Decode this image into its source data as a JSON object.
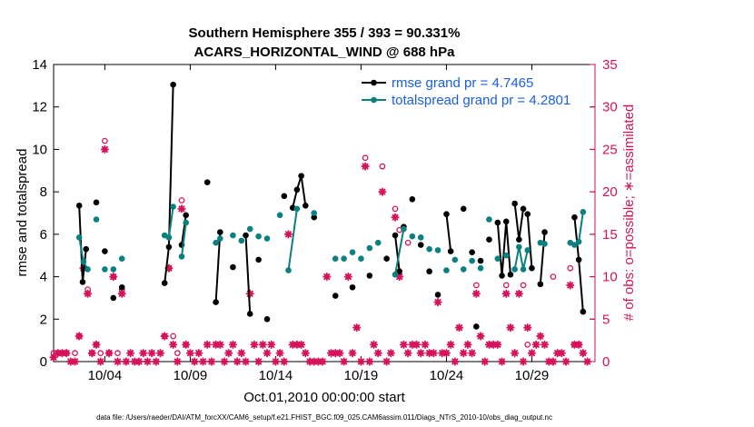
{
  "chart_data": {
    "type": "scatter",
    "title": "Southern Hemisphere 355 / 393 = 90.331%",
    "subtitle": "ACARS_HORIZONTAL_WIND @ 688 hPa",
    "xlabel": "Oct.01,2010 00:00:00 start",
    "ylabel": "rmse and totalspread",
    "ylabel_right": "# of obs: o=possible; ∗=assimilated",
    "footnote": "data file: /Users/raeder/DAI/ATM_forcXX/CAM6_setup/f.e21.FHIST_BGC.f09_025.CAM6assim.011/Diags_NTrS_2010-10/obs_diag_output.nc",
    "xlim": [
      1.0,
      32.7
    ],
    "ylim": [
      0,
      14
    ],
    "ylim_right": [
      0,
      35
    ],
    "x_tick_values": [
      4,
      9,
      14,
      19,
      24,
      29
    ],
    "x_tick_labels": [
      "10/04",
      "10/09",
      "10/14",
      "10/19",
      "10/24",
      "10/29"
    ],
    "y_ticks": [
      0,
      2,
      4,
      6,
      8,
      10,
      12,
      14
    ],
    "y_ticks_right": [
      0,
      5,
      10,
      15,
      20,
      25,
      30,
      35
    ],
    "grid": false,
    "legend_position": "top-right",
    "colors": {
      "rmse": "#000000",
      "spread": "#0a8080",
      "obs": "#d6135a",
      "legend_text": "#1a5fe0"
    },
    "series": [
      {
        "name": "rmse grand pr = 4.7465",
        "color": "#000000",
        "segments": [
          [
            [
              2.5,
              7.35
            ],
            [
              2.7,
              3.75
            ],
            [
              2.9,
              5.3
            ]
          ],
          [
            [
              3.5,
              7.5
            ]
          ],
          [
            [
              4.0,
              5.2
            ]
          ],
          [
            [
              4.5,
              3.0
            ]
          ],
          [
            [
              5.0,
              3.5
            ]
          ],
          [
            [
              7.5,
              3.7
            ],
            [
              7.75,
              5.4
            ],
            [
              8.0,
              13.05
            ]
          ],
          [
            [
              8.5,
              5.5
            ],
            [
              8.75,
              6.9
            ]
          ],
          [
            [
              10.0,
              8.45
            ]
          ],
          [
            [
              10.5,
              2.8
            ],
            [
              10.75,
              6.1
            ]
          ],
          [
            [
              11.5,
              4.45
            ]
          ],
          [
            [
              12.25,
              5.95
            ],
            [
              12.5,
              2.25
            ]
          ],
          [
            [
              13.0,
              4.8
            ]
          ],
          [
            [
              13.5,
              2.0
            ]
          ],
          [
            [
              14.5,
              7.8
            ]
          ],
          [
            [
              15.0,
              7.25
            ],
            [
              15.25,
              8.1
            ],
            [
              15.5,
              8.75
            ],
            [
              15.75,
              7.35
            ]
          ],
          [
            [
              16.25,
              6.8
            ]
          ],
          [
            [
              17.5,
              3.1
            ]
          ],
          [
            [
              18.5,
              3.5
            ]
          ],
          [
            [
              19.5,
              4.05
            ]
          ],
          [
            [
              20.5,
              4.85
            ]
          ],
          [
            [
              21.0,
              5.95
            ],
            [
              21.25,
              4.25
            ]
          ],
          [
            [
              21.5,
              6.35
            ]
          ],
          [
            [
              22.0,
              7.65
            ]
          ],
          [
            [
              22.5,
              5.5
            ]
          ],
          [
            [
              23.0,
              4.25
            ]
          ],
          [
            [
              23.5,
              3.15
            ]
          ],
          [
            [
              24.0,
              6.95
            ],
            [
              24.25,
              5.2
            ]
          ],
          [
            [
              25.0,
              7.2
            ]
          ],
          [
            [
              25.5,
              5.15
            ]
          ],
          [
            [
              25.75,
              1.65
            ]
          ],
          [
            [
              26.0,
              4.75
            ]
          ],
          [
            [
              26.5,
              5.75
            ]
          ],
          [
            [
              27.0,
              6.55
            ],
            [
              27.25,
              4.05
            ],
            [
              27.5,
              6.6
            ],
            [
              27.75,
              4.1
            ]
          ],
          [
            [
              28.0,
              7.45
            ],
            [
              28.25,
              5.75
            ],
            [
              28.5,
              7.2
            ]
          ],
          [
            [
              28.75,
              6.95
            ],
            [
              29.0,
              4.4
            ]
          ],
          [
            [
              29.5,
              3.65
            ],
            [
              29.75,
              6.1
            ]
          ],
          [
            [
              31.5,
              6.8
            ],
            [
              31.75,
              4.8
            ],
            [
              32.0,
              2.35
            ]
          ]
        ]
      },
      {
        "name": "totalspread grand pr = 4.2801",
        "color": "#0a8080",
        "segments": [
          [
            [
              2.5,
              5.85
            ],
            [
              2.75,
              4.7
            ],
            [
              3.0,
              4.35
            ]
          ],
          [
            [
              3.5,
              6.7
            ]
          ],
          [
            [
              4.0,
              4.35
            ]
          ],
          [
            [
              4.5,
              4.35
            ]
          ],
          [
            [
              5.0,
              4.85
            ]
          ],
          [
            [
              7.5,
              5.95
            ],
            [
              7.75,
              5.85
            ],
            [
              8.0,
              7.3
            ]
          ],
          [
            [
              8.5,
              4.95
            ],
            [
              8.75,
              6.55
            ]
          ],
          [
            [
              10.5,
              5.6
            ],
            [
              10.75,
              5.8
            ]
          ],
          [
            [
              11.5,
              5.95
            ]
          ],
          [
            [
              12.0,
              5.7
            ]
          ],
          [
            [
              12.5,
              6.25
            ]
          ],
          [
            [
              13.0,
              5.9
            ]
          ],
          [
            [
              13.5,
              5.8
            ]
          ],
          [
            [
              14.25,
              6.9
            ]
          ],
          [
            [
              14.75,
              4.3
            ],
            [
              15.25,
              7.2
            ]
          ],
          [
            [
              16.25,
              7.0
            ]
          ],
          [
            [
              17.5,
              4.85
            ]
          ],
          [
            [
              18.0,
              4.85
            ]
          ],
          [
            [
              18.5,
              5.15
            ]
          ],
          [
            [
              19.0,
              4.85
            ]
          ],
          [
            [
              19.5,
              5.35
            ]
          ],
          [
            [
              20.0,
              5.6
            ]
          ],
          [
            [
              21.0,
              4.1
            ],
            [
              21.5,
              6.25
            ]
          ],
          [
            [
              22.0,
              5.9
            ]
          ],
          [
            [
              22.5,
              5.85
            ]
          ],
          [
            [
              23.0,
              5.3
            ]
          ],
          [
            [
              23.5,
              5.25
            ]
          ],
          [
            [
              24.0,
              4.3
            ]
          ],
          [
            [
              24.5,
              4.8
            ]
          ],
          [
            [
              25.0,
              4.35
            ]
          ],
          [
            [
              25.5,
              4.75
            ]
          ],
          [
            [
              26.0,
              4.4
            ]
          ],
          [
            [
              26.5,
              6.7
            ]
          ],
          [
            [
              27.0,
              4.85
            ]
          ],
          [
            [
              27.5,
              5.0
            ]
          ],
          [
            [
              28.0,
              4.35
            ],
            [
              28.25,
              5.4
            ],
            [
              28.5,
              4.35
            ],
            [
              28.75,
              5.25
            ]
          ],
          [
            [
              29.5,
              5.6
            ],
            [
              29.75,
              5.55
            ]
          ],
          [
            [
              31.25,
              5.6
            ]
          ],
          [
            [
              31.5,
              5.5
            ]
          ],
          [
            [
              31.75,
              5.65
            ],
            [
              32.0,
              7.05
            ]
          ]
        ]
      }
    ],
    "obs_possible": [
      [
        1,
        1
      ],
      [
        1.25,
        1
      ],
      [
        1.5,
        1
      ],
      [
        1.75,
        1
      ],
      [
        2.25,
        1
      ],
      [
        2.5,
        3
      ],
      [
        2.75,
        11
      ],
      [
        3.0,
        8.5
      ],
      [
        3.25,
        1
      ],
      [
        3.5,
        2
      ],
      [
        3.75,
        1
      ],
      [
        4.0,
        26
      ],
      [
        4.25,
        1
      ],
      [
        4.5,
        10
      ],
      [
        4.75,
        1
      ],
      [
        5.0,
        8.5
      ],
      [
        7.5,
        3
      ],
      [
        7.75,
        11
      ],
      [
        8.0,
        3
      ],
      [
        8.25,
        1
      ],
      [
        8.5,
        19
      ],
      [
        8.75,
        2
      ],
      [
        19.25,
        24
      ],
      [
        20.25,
        23
      ],
      [
        21.0,
        18
      ],
      [
        21.25,
        15.5
      ],
      [
        21.75,
        14
      ],
      [
        25.75,
        9
      ],
      [
        27.5,
        9
      ],
      [
        28.5,
        9
      ],
      [
        28.75,
        2
      ],
      [
        30.25,
        10
      ],
      [
        31.25,
        11
      ],
      [
        31.5,
        2
      ],
      [
        31.75,
        2
      ]
    ],
    "obs_assimilated": [
      [
        1,
        0.5
      ],
      [
        1.25,
        1
      ],
      [
        1.5,
        1
      ],
      [
        1.75,
        1
      ],
      [
        2.0,
        0
      ],
      [
        2.25,
        0
      ],
      [
        2.5,
        3
      ],
      [
        2.75,
        11
      ],
      [
        3.0,
        8
      ],
      [
        3.25,
        1
      ],
      [
        3.5,
        2
      ],
      [
        3.75,
        0
      ],
      [
        4.0,
        25
      ],
      [
        4.25,
        1
      ],
      [
        4.5,
        10
      ],
      [
        4.75,
        0
      ],
      [
        5.0,
        8
      ],
      [
        5.25,
        0
      ],
      [
        5.5,
        1
      ],
      [
        5.75,
        0
      ],
      [
        6.0,
        0
      ],
      [
        6.25,
        1
      ],
      [
        6.5,
        0
      ],
      [
        6.75,
        1
      ],
      [
        7.0,
        0
      ],
      [
        7.25,
        1
      ],
      [
        7.5,
        3
      ],
      [
        7.75,
        11
      ],
      [
        8.0,
        2
      ],
      [
        8.25,
        0
      ],
      [
        8.5,
        18
      ],
      [
        8.75,
        2
      ],
      [
        9.0,
        1
      ],
      [
        9.25,
        0
      ],
      [
        9.5,
        1
      ],
      [
        9.75,
        0
      ],
      [
        10.0,
        2
      ],
      [
        10.25,
        0
      ],
      [
        10.5,
        2
      ],
      [
        10.75,
        2
      ],
      [
        11.0,
        0
      ],
      [
        11.25,
        1
      ],
      [
        11.5,
        2
      ],
      [
        11.75,
        0
      ],
      [
        12.0,
        1
      ],
      [
        12.25,
        0
      ],
      [
        12.5,
        8
      ],
      [
        12.75,
        2
      ],
      [
        13.0,
        0
      ],
      [
        13.25,
        2
      ],
      [
        13.5,
        1
      ],
      [
        13.75,
        2
      ],
      [
        14.0,
        0
      ],
      [
        14.25,
        1
      ],
      [
        14.5,
        0
      ],
      [
        14.75,
        15
      ],
      [
        15.0,
        2
      ],
      [
        15.25,
        2
      ],
      [
        15.5,
        2
      ],
      [
        15.75,
        1
      ],
      [
        16.0,
        0
      ],
      [
        16.25,
        0
      ],
      [
        16.5,
        0
      ],
      [
        16.75,
        0
      ],
      [
        17.0,
        10
      ],
      [
        17.25,
        1
      ],
      [
        17.5,
        1
      ],
      [
        17.75,
        1
      ],
      [
        18.0,
        0
      ],
      [
        18.25,
        10
      ],
      [
        18.5,
        1
      ],
      [
        18.75,
        4
      ],
      [
        19.0,
        0
      ],
      [
        19.25,
        23
      ],
      [
        19.5,
        0
      ],
      [
        19.75,
        2
      ],
      [
        20.0,
        1
      ],
      [
        20.25,
        20
      ],
      [
        20.5,
        0
      ],
      [
        20.75,
        1
      ],
      [
        21.0,
        17
      ],
      [
        21.25,
        10
      ],
      [
        21.5,
        2
      ],
      [
        21.75,
        1
      ],
      [
        22.0,
        2
      ],
      [
        22.25,
        2
      ],
      [
        22.5,
        1
      ],
      [
        22.75,
        2
      ],
      [
        23.0,
        1
      ],
      [
        23.25,
        1
      ],
      [
        23.5,
        7
      ],
      [
        23.75,
        1
      ],
      [
        24.0,
        1
      ],
      [
        24.25,
        2
      ],
      [
        24.5,
        0
      ],
      [
        24.75,
        4
      ],
      [
        25.0,
        1
      ],
      [
        25.25,
        2
      ],
      [
        25.5,
        1
      ],
      [
        25.75,
        8
      ],
      [
        26.0,
        3
      ],
      [
        26.25,
        0
      ],
      [
        26.5,
        2
      ],
      [
        26.75,
        2
      ],
      [
        27.0,
        2
      ],
      [
        27.25,
        0
      ],
      [
        27.5,
        8
      ],
      [
        27.75,
        4
      ],
      [
        28.0,
        1
      ],
      [
        28.25,
        8
      ],
      [
        28.5,
        0
      ],
      [
        28.75,
        4
      ],
      [
        29.0,
        1
      ],
      [
        29.25,
        2
      ],
      [
        29.5,
        3
      ],
      [
        29.75,
        2
      ],
      [
        30.0,
        0
      ],
      [
        30.25,
        0
      ],
      [
        30.5,
        1
      ],
      [
        30.75,
        1
      ],
      [
        31.0,
        0
      ],
      [
        31.25,
        9
      ],
      [
        31.5,
        2
      ],
      [
        31.75,
        2
      ],
      [
        32.0,
        1
      ],
      [
        32.25,
        0
      ]
    ]
  }
}
